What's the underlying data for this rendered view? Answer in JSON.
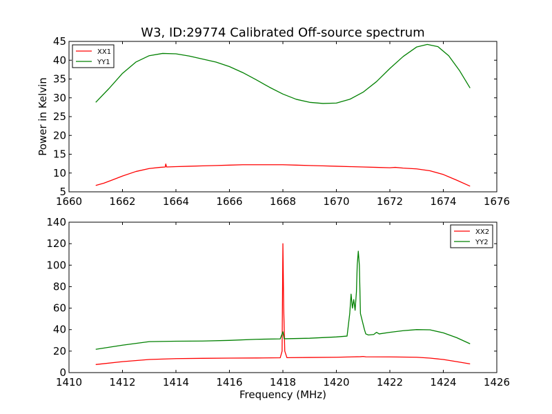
{
  "figure": {
    "title": "W3, ID:29774 Calibrated Off-source spectrum"
  },
  "chart_data": [
    {
      "type": "line",
      "title": "W3, ID:29774 Calibrated Off-source spectrum",
      "xlabel": "",
      "ylabel": "Power in Kelvin",
      "xlim": [
        1660,
        1676
      ],
      "ylim": [
        5,
        45
      ],
      "x_ticks": [
        1660,
        1662,
        1664,
        1666,
        1668,
        1670,
        1672,
        1674,
        1676
      ],
      "y_ticks": [
        5,
        10,
        15,
        20,
        25,
        30,
        35,
        40,
        45
      ],
      "grid": false,
      "legend_position": "top-left",
      "series": [
        {
          "name": "XX1",
          "color": "#ff0000",
          "x": [
            1661.0,
            1661.3,
            1661.6,
            1662.0,
            1662.5,
            1663.0,
            1663.4,
            1663.6,
            1663.62,
            1663.65,
            1664.0,
            1664.5,
            1665.0,
            1665.5,
            1666.0,
            1666.5,
            1667.0,
            1667.5,
            1668.0,
            1668.5,
            1669.0,
            1669.5,
            1670.0,
            1670.5,
            1671.0,
            1671.5,
            1672.0,
            1672.2,
            1672.5,
            1673.0,
            1673.5,
            1674.0,
            1674.5,
            1675.0
          ],
          "y": [
            6.7,
            7.3,
            8.1,
            9.2,
            10.4,
            11.2,
            11.5,
            11.6,
            12.4,
            11.6,
            11.7,
            11.8,
            11.9,
            12.0,
            12.1,
            12.2,
            12.2,
            12.2,
            12.2,
            12.1,
            12.0,
            11.9,
            11.8,
            11.7,
            11.6,
            11.5,
            11.4,
            11.5,
            11.3,
            11.1,
            10.6,
            9.6,
            8.1,
            6.5
          ]
        },
        {
          "name": "YY1",
          "color": "#008000",
          "x": [
            1661.0,
            1661.5,
            1662.0,
            1662.5,
            1663.0,
            1663.5,
            1664.0,
            1664.5,
            1665.0,
            1665.5,
            1666.0,
            1666.5,
            1667.0,
            1667.5,
            1668.0,
            1668.5,
            1669.0,
            1669.5,
            1670.0,
            1670.5,
            1671.0,
            1671.5,
            1672.0,
            1672.5,
            1673.0,
            1673.4,
            1673.8,
            1674.2,
            1674.6,
            1675.0
          ],
          "y": [
            28.8,
            32.5,
            36.5,
            39.5,
            41.2,
            41.8,
            41.7,
            41.1,
            40.3,
            39.5,
            38.3,
            36.7,
            34.8,
            32.8,
            31.0,
            29.6,
            28.8,
            28.5,
            28.6,
            29.6,
            31.5,
            34.3,
            37.8,
            41.0,
            43.5,
            44.2,
            43.6,
            41.2,
            37.3,
            32.6
          ]
        }
      ]
    },
    {
      "type": "line",
      "title": "",
      "xlabel": "Frequency (MHz)",
      "ylabel": "",
      "xlim": [
        1410,
        1426
      ],
      "ylim": [
        0,
        140
      ],
      "x_ticks": [
        1410,
        1412,
        1414,
        1416,
        1418,
        1420,
        1422,
        1424,
        1426
      ],
      "y_ticks": [
        0,
        20,
        40,
        60,
        80,
        100,
        120,
        140
      ],
      "grid": false,
      "legend_position": "top-right",
      "series": [
        {
          "name": "XX2",
          "color": "#ff0000",
          "x": [
            1411.0,
            1412.0,
            1413.0,
            1414.0,
            1415.0,
            1416.0,
            1417.0,
            1417.9,
            1417.97,
            1418.0,
            1418.03,
            1418.07,
            1418.15,
            1419.0,
            1420.0,
            1420.9,
            1421.0,
            1421.1,
            1422.0,
            1423.0,
            1423.5,
            1424.0,
            1424.5,
            1425.0
          ],
          "y": [
            7.5,
            10.2,
            12.2,
            13.0,
            13.3,
            13.5,
            13.6,
            13.8,
            20.0,
            120.0,
            60.0,
            20.0,
            13.9,
            14.1,
            14.3,
            14.8,
            15.0,
            14.7,
            14.6,
            14.3,
            13.5,
            12.2,
            10.2,
            8.1
          ]
        },
        {
          "name": "YY2",
          "color": "#008000",
          "x": [
            1411.0,
            1412.0,
            1413.0,
            1414.0,
            1415.0,
            1416.0,
            1417.0,
            1417.9,
            1418.0,
            1418.05,
            1418.1,
            1419.0,
            1420.0,
            1420.4,
            1420.5,
            1420.55,
            1420.6,
            1420.65,
            1420.7,
            1420.75,
            1420.78,
            1420.82,
            1420.86,
            1420.9,
            1420.95,
            1421.0,
            1421.05,
            1421.1,
            1421.2,
            1421.4,
            1421.5,
            1421.6,
            1422.0,
            1422.5,
            1423.0,
            1423.5,
            1424.0,
            1424.5,
            1425.0
          ],
          "y": [
            21.7,
            25.5,
            28.8,
            29.2,
            29.4,
            30.0,
            31.0,
            31.4,
            38.0,
            31.5,
            31.5,
            32.0,
            33.2,
            34.0,
            55.0,
            73.0,
            60.0,
            68.0,
            58.0,
            75.0,
            100.0,
            113.0,
            100.0,
            55.0,
            50.0,
            45.0,
            40.0,
            36.0,
            35.0,
            35.5,
            37.5,
            36.0,
            37.5,
            39.0,
            40.0,
            39.8,
            37.0,
            32.5,
            26.8
          ]
        }
      ]
    }
  ]
}
